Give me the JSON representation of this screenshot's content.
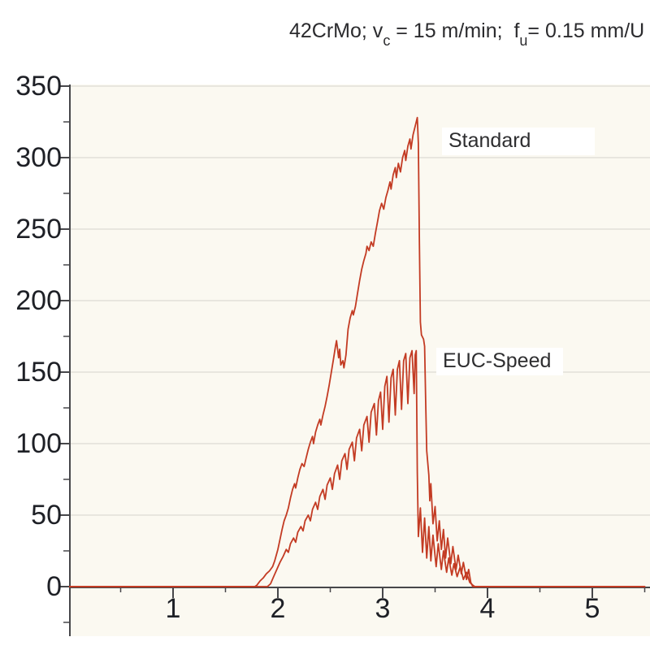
{
  "title": {
    "segments": [
      {
        "t": "42CrMo; v"
      },
      {
        "t": "c",
        "sub": true
      },
      {
        "t": " = 15 m/min;  f"
      },
      {
        "t": "u",
        "sub": true
      },
      {
        "t": "= 0.15 mm/U"
      }
    ],
    "plain": "42CrMo; vc = 15 m/min;  fu= 0.15 mm/U"
  },
  "colors": {
    "curve": "#c33b23",
    "plot_background": "#fbf9f1",
    "gridline": "#e2e0d9",
    "axis": "#47474a",
    "text": "#1e2026",
    "page_background": "#ffffff",
    "label_background": "#ffffff"
  },
  "chart_data": {
    "type": "line",
    "title": "42CrMo; vc = 15 m/min;  fu= 0.15 mm/U",
    "xlabel": "",
    "ylabel": "",
    "xlim": [
      0,
      5.55
    ],
    "ylim": [
      -25,
      350
    ],
    "x_ticks": [
      1,
      2,
      3,
      4,
      5
    ],
    "y_ticks": [
      0,
      50,
      100,
      150,
      200,
      250,
      300,
      350
    ],
    "grid": "horizontal-only",
    "legend_position": "inline-annotations",
    "annotations": [
      {
        "text": "Standard",
        "x": 3.65,
        "y": 305
      },
      {
        "text": "EUC-Speed",
        "x": 3.6,
        "y": 152
      }
    ],
    "series": [
      {
        "name": "Standard",
        "color": "#c33b23",
        "points": [
          [
            0,
            0
          ],
          [
            1.78,
            0
          ],
          [
            1.8,
            1
          ],
          [
            1.83,
            4
          ],
          [
            1.86,
            6
          ],
          [
            1.89,
            9
          ],
          [
            1.92,
            11
          ],
          [
            1.95,
            14
          ],
          [
            1.97,
            18
          ],
          [
            2.0,
            26
          ],
          [
            2.02,
            33
          ],
          [
            2.04,
            40
          ],
          [
            2.06,
            46
          ],
          [
            2.08,
            50
          ],
          [
            2.1,
            55
          ],
          [
            2.12,
            62
          ],
          [
            2.14,
            68
          ],
          [
            2.16,
            72
          ],
          [
            2.17,
            69
          ],
          [
            2.19,
            76
          ],
          [
            2.21,
            82
          ],
          [
            2.23,
            86
          ],
          [
            2.25,
            84
          ],
          [
            2.27,
            90
          ],
          [
            2.29,
            96
          ],
          [
            2.31,
            101
          ],
          [
            2.33,
            105
          ],
          [
            2.34,
            100
          ],
          [
            2.36,
            108
          ],
          [
            2.38,
            113
          ],
          [
            2.4,
            117
          ],
          [
            2.41,
            113
          ],
          [
            2.43,
            120
          ],
          [
            2.45,
            126
          ],
          [
            2.47,
            133
          ],
          [
            2.49,
            141
          ],
          [
            2.51,
            150
          ],
          [
            2.53,
            159
          ],
          [
            2.55,
            168
          ],
          [
            2.56,
            172
          ],
          [
            2.58,
            160
          ],
          [
            2.59,
            166
          ],
          [
            2.6,
            155
          ],
          [
            2.62,
            158
          ],
          [
            2.63,
            153
          ],
          [
            2.65,
            162
          ],
          [
            2.67,
            180
          ],
          [
            2.69,
            188
          ],
          [
            2.71,
            193
          ],
          [
            2.72,
            190
          ],
          [
            2.74,
            196
          ],
          [
            2.76,
            205
          ],
          [
            2.78,
            214
          ],
          [
            2.8,
            222
          ],
          [
            2.82,
            228
          ],
          [
            2.84,
            233
          ],
          [
            2.85,
            238
          ],
          [
            2.87,
            235
          ],
          [
            2.89,
            241
          ],
          [
            2.91,
            238
          ],
          [
            2.93,
            247
          ],
          [
            2.95,
            255
          ],
          [
            2.97,
            263
          ],
          [
            2.99,
            268
          ],
          [
            3.01,
            264
          ],
          [
            3.03,
            272
          ],
          [
            3.05,
            277
          ],
          [
            3.07,
            283
          ],
          [
            3.08,
            278
          ],
          [
            3.1,
            288
          ],
          [
            3.12,
            293
          ],
          [
            3.13,
            286
          ],
          [
            3.15,
            296
          ],
          [
            3.17,
            290
          ],
          [
            3.19,
            300
          ],
          [
            3.21,
            305
          ],
          [
            3.22,
            298
          ],
          [
            3.24,
            308
          ],
          [
            3.26,
            313
          ],
          [
            3.27,
            306
          ],
          [
            3.29,
            316
          ],
          [
            3.31,
            322
          ],
          [
            3.33,
            328
          ],
          [
            3.34,
            310
          ],
          [
            3.35,
            240
          ],
          [
            3.36,
            185
          ],
          [
            3.37,
            176
          ],
          [
            3.39,
            173
          ],
          [
            3.4,
            168
          ],
          [
            3.41,
            130
          ],
          [
            3.42,
            95
          ],
          [
            3.44,
            78
          ],
          [
            3.45,
            60
          ],
          [
            3.46,
            72
          ],
          [
            3.48,
            44
          ],
          [
            3.5,
            56
          ],
          [
            3.52,
            32
          ],
          [
            3.54,
            46
          ],
          [
            3.56,
            26
          ],
          [
            3.58,
            40
          ],
          [
            3.6,
            20
          ],
          [
            3.62,
            34
          ],
          [
            3.65,
            16
          ],
          [
            3.67,
            28
          ],
          [
            3.7,
            12
          ],
          [
            3.72,
            22
          ],
          [
            3.75,
            9
          ],
          [
            3.77,
            17
          ],
          [
            3.8,
            5
          ],
          [
            3.82,
            12
          ],
          [
            3.84,
            3
          ],
          [
            3.86,
            0
          ],
          [
            5.5,
            0
          ]
        ]
      },
      {
        "name": "EUC-Speed",
        "color": "#c33b23",
        "points": [
          [
            0,
            0
          ],
          [
            1.9,
            0
          ],
          [
            1.93,
            2
          ],
          [
            1.96,
            7
          ],
          [
            1.99,
            12
          ],
          [
            2.02,
            17
          ],
          [
            2.05,
            21
          ],
          [
            2.08,
            26
          ],
          [
            2.1,
            24
          ],
          [
            2.12,
            30
          ],
          [
            2.15,
            34
          ],
          [
            2.17,
            31
          ],
          [
            2.19,
            38
          ],
          [
            2.22,
            42
          ],
          [
            2.24,
            39
          ],
          [
            2.26,
            46
          ],
          [
            2.29,
            50
          ],
          [
            2.31,
            46
          ],
          [
            2.33,
            54
          ],
          [
            2.36,
            59
          ],
          [
            2.38,
            54
          ],
          [
            2.4,
            63
          ],
          [
            2.43,
            68
          ],
          [
            2.45,
            61
          ],
          [
            2.47,
            71
          ],
          [
            2.5,
            76
          ],
          [
            2.52,
            68
          ],
          [
            2.54,
            79
          ],
          [
            2.57,
            85
          ],
          [
            2.59,
            75
          ],
          [
            2.61,
            88
          ],
          [
            2.64,
            93
          ],
          [
            2.66,
            82
          ],
          [
            2.68,
            96
          ],
          [
            2.71,
            101
          ],
          [
            2.73,
            88
          ],
          [
            2.75,
            104
          ],
          [
            2.78,
            110
          ],
          [
            2.8,
            95
          ],
          [
            2.82,
            113
          ],
          [
            2.85,
            119
          ],
          [
            2.87,
            101
          ],
          [
            2.89,
            122
          ],
          [
            2.92,
            128
          ],
          [
            2.94,
            106
          ],
          [
            2.96,
            130
          ],
          [
            2.98,
            136
          ],
          [
            3.0,
            110
          ],
          [
            3.02,
            140
          ],
          [
            3.04,
            147
          ],
          [
            3.06,
            115
          ],
          [
            3.08,
            146
          ],
          [
            3.1,
            152
          ],
          [
            3.12,
            120
          ],
          [
            3.14,
            152
          ],
          [
            3.16,
            158
          ],
          [
            3.18,
            124
          ],
          [
            3.2,
            158
          ],
          [
            3.22,
            163
          ],
          [
            3.24,
            128
          ],
          [
            3.26,
            160
          ],
          [
            3.28,
            165
          ],
          [
            3.3,
            135
          ],
          [
            3.31,
            162
          ],
          [
            3.32,
            165
          ],
          [
            3.33,
            80
          ],
          [
            3.34,
            35
          ],
          [
            3.36,
            55
          ],
          [
            3.38,
            24
          ],
          [
            3.4,
            48
          ],
          [
            3.42,
            20
          ],
          [
            3.44,
            42
          ],
          [
            3.46,
            18
          ],
          [
            3.48,
            36
          ],
          [
            3.51,
            14
          ],
          [
            3.53,
            30
          ],
          [
            3.56,
            12
          ],
          [
            3.58,
            25
          ],
          [
            3.61,
            10
          ],
          [
            3.63,
            20
          ],
          [
            3.66,
            8
          ],
          [
            3.68,
            16
          ],
          [
            3.71,
            7
          ],
          [
            3.74,
            14
          ],
          [
            3.77,
            5
          ],
          [
            3.8,
            10
          ],
          [
            3.83,
            3
          ],
          [
            3.86,
            1
          ],
          [
            3.88,
            0
          ],
          [
            5.5,
            0
          ]
        ]
      }
    ]
  }
}
